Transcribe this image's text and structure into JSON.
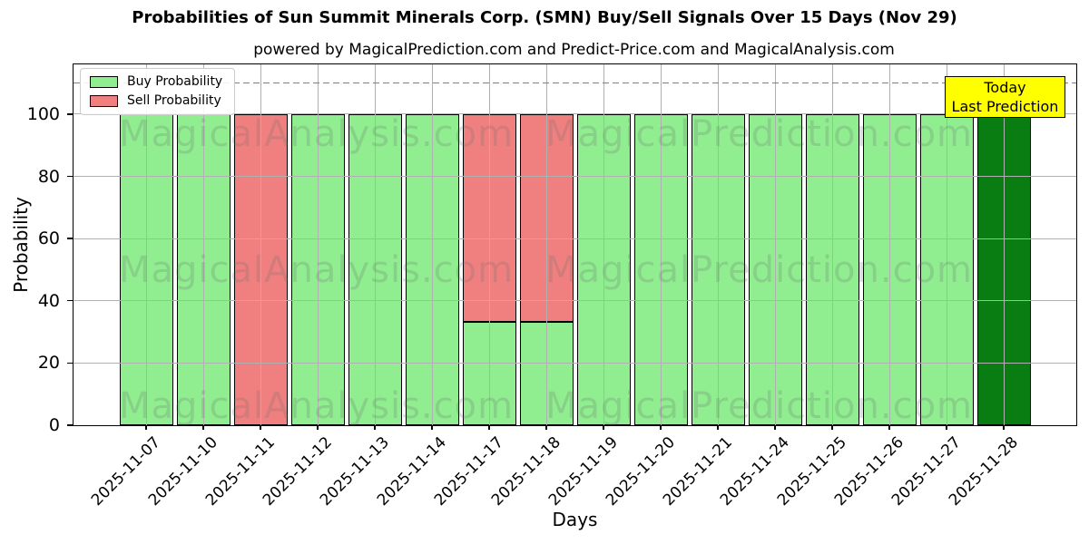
{
  "title": "Probabilities of Sun Summit Minerals Corp. (SMN) Buy/Sell Signals Over 15 Days (Nov 29)",
  "subtitle": "powered by MagicalPrediction.com and Predict-Price.com and MagicalAnalysis.com",
  "watermarks": {
    "left": "MagicalAnalysis.com",
    "right": "MagicalPrediction.com"
  },
  "annotation": {
    "line1": "Today",
    "line2": "Last Prediction",
    "bg": "#FFFF00"
  },
  "colors": {
    "buy": "#90EE90",
    "sell": "#F08080",
    "today_bar": "#0A7D12",
    "grid": "#B0B0B0",
    "dashed_line": "#808080",
    "bar_edge": "#000000",
    "annotation_bg": "#FFFF00"
  },
  "chart_data": {
    "type": "bar",
    "stacked": true,
    "title": "Probabilities of Sun Summit Minerals Corp. (SMN) Buy/Sell Signals Over 15 Days (Nov 29)",
    "subtitle": "powered by MagicalPrediction.com and Predict-Price.com and MagicalAnalysis.com",
    "xlabel": "Days",
    "ylabel": "Probability",
    "ylim": [
      0,
      116
    ],
    "yticks": [
      0,
      20,
      40,
      60,
      80,
      100
    ],
    "grid": true,
    "dashed_line_y": 110,
    "legend_position": "upper left",
    "categories": [
      "2025-11-07",
      "2025-11-10",
      "2025-11-11",
      "2025-11-12",
      "2025-11-13",
      "2025-11-14",
      "2025-11-17",
      "2025-11-18",
      "2025-11-19",
      "2025-11-20",
      "2025-11-21",
      "2025-11-24",
      "2025-11-25",
      "2025-11-26",
      "2025-11-27",
      "2025-11-28"
    ],
    "series": [
      {
        "name": "Buy Probability",
        "color": "#90EE90",
        "values": [
          100,
          100,
          0,
          100,
          100,
          100,
          33.33,
          33.33,
          100,
          100,
          100,
          100,
          100,
          100,
          100,
          100
        ]
      },
      {
        "name": "Sell Probability",
        "color": "#F08080",
        "values": [
          0,
          0,
          100,
          0,
          0,
          0,
          66.67,
          66.67,
          0,
          0,
          0,
          0,
          0,
          0,
          0,
          0
        ]
      }
    ],
    "today_bar": {
      "index": 15,
      "color": "#0A7D12"
    }
  }
}
